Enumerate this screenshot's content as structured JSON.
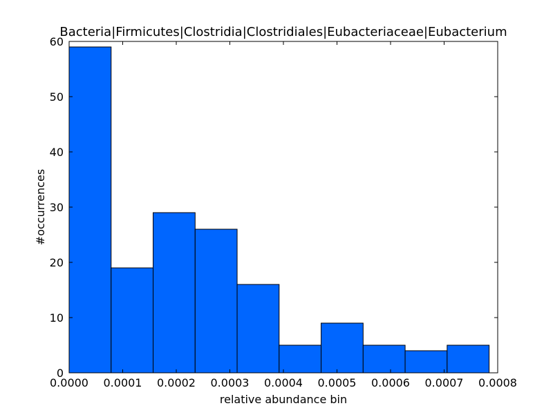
{
  "chart_data": {
    "type": "bar",
    "title": "Bacteria|Firmicutes|Clostridia|Clostridiales|Eubacteriaceae|Eubacterium",
    "xlabel": "relative abundance bin",
    "ylabel": "#occurrences",
    "bin_edges": [
      0.0,
      7.84e-05,
      0.0001568,
      0.0002352,
      0.0003136,
      0.000392,
      0.0004704,
      0.0005488,
      0.0006272,
      0.0007056,
      0.000784
    ],
    "values": [
      59,
      19,
      29,
      26,
      16,
      5,
      9,
      5,
      4,
      5
    ],
    "xlim": [
      0,
      0.0008
    ],
    "ylim": [
      0,
      60
    ],
    "xticks": [
      "0.0000",
      "0.0001",
      "0.0002",
      "0.0003",
      "0.0004",
      "0.0005",
      "0.0006",
      "0.0007",
      "0.0008"
    ],
    "yticks": [
      "0",
      "10",
      "20",
      "30",
      "40",
      "50",
      "60"
    ],
    "bar_color": "#0066ff",
    "edge_color": "#000000",
    "grid": false
  }
}
